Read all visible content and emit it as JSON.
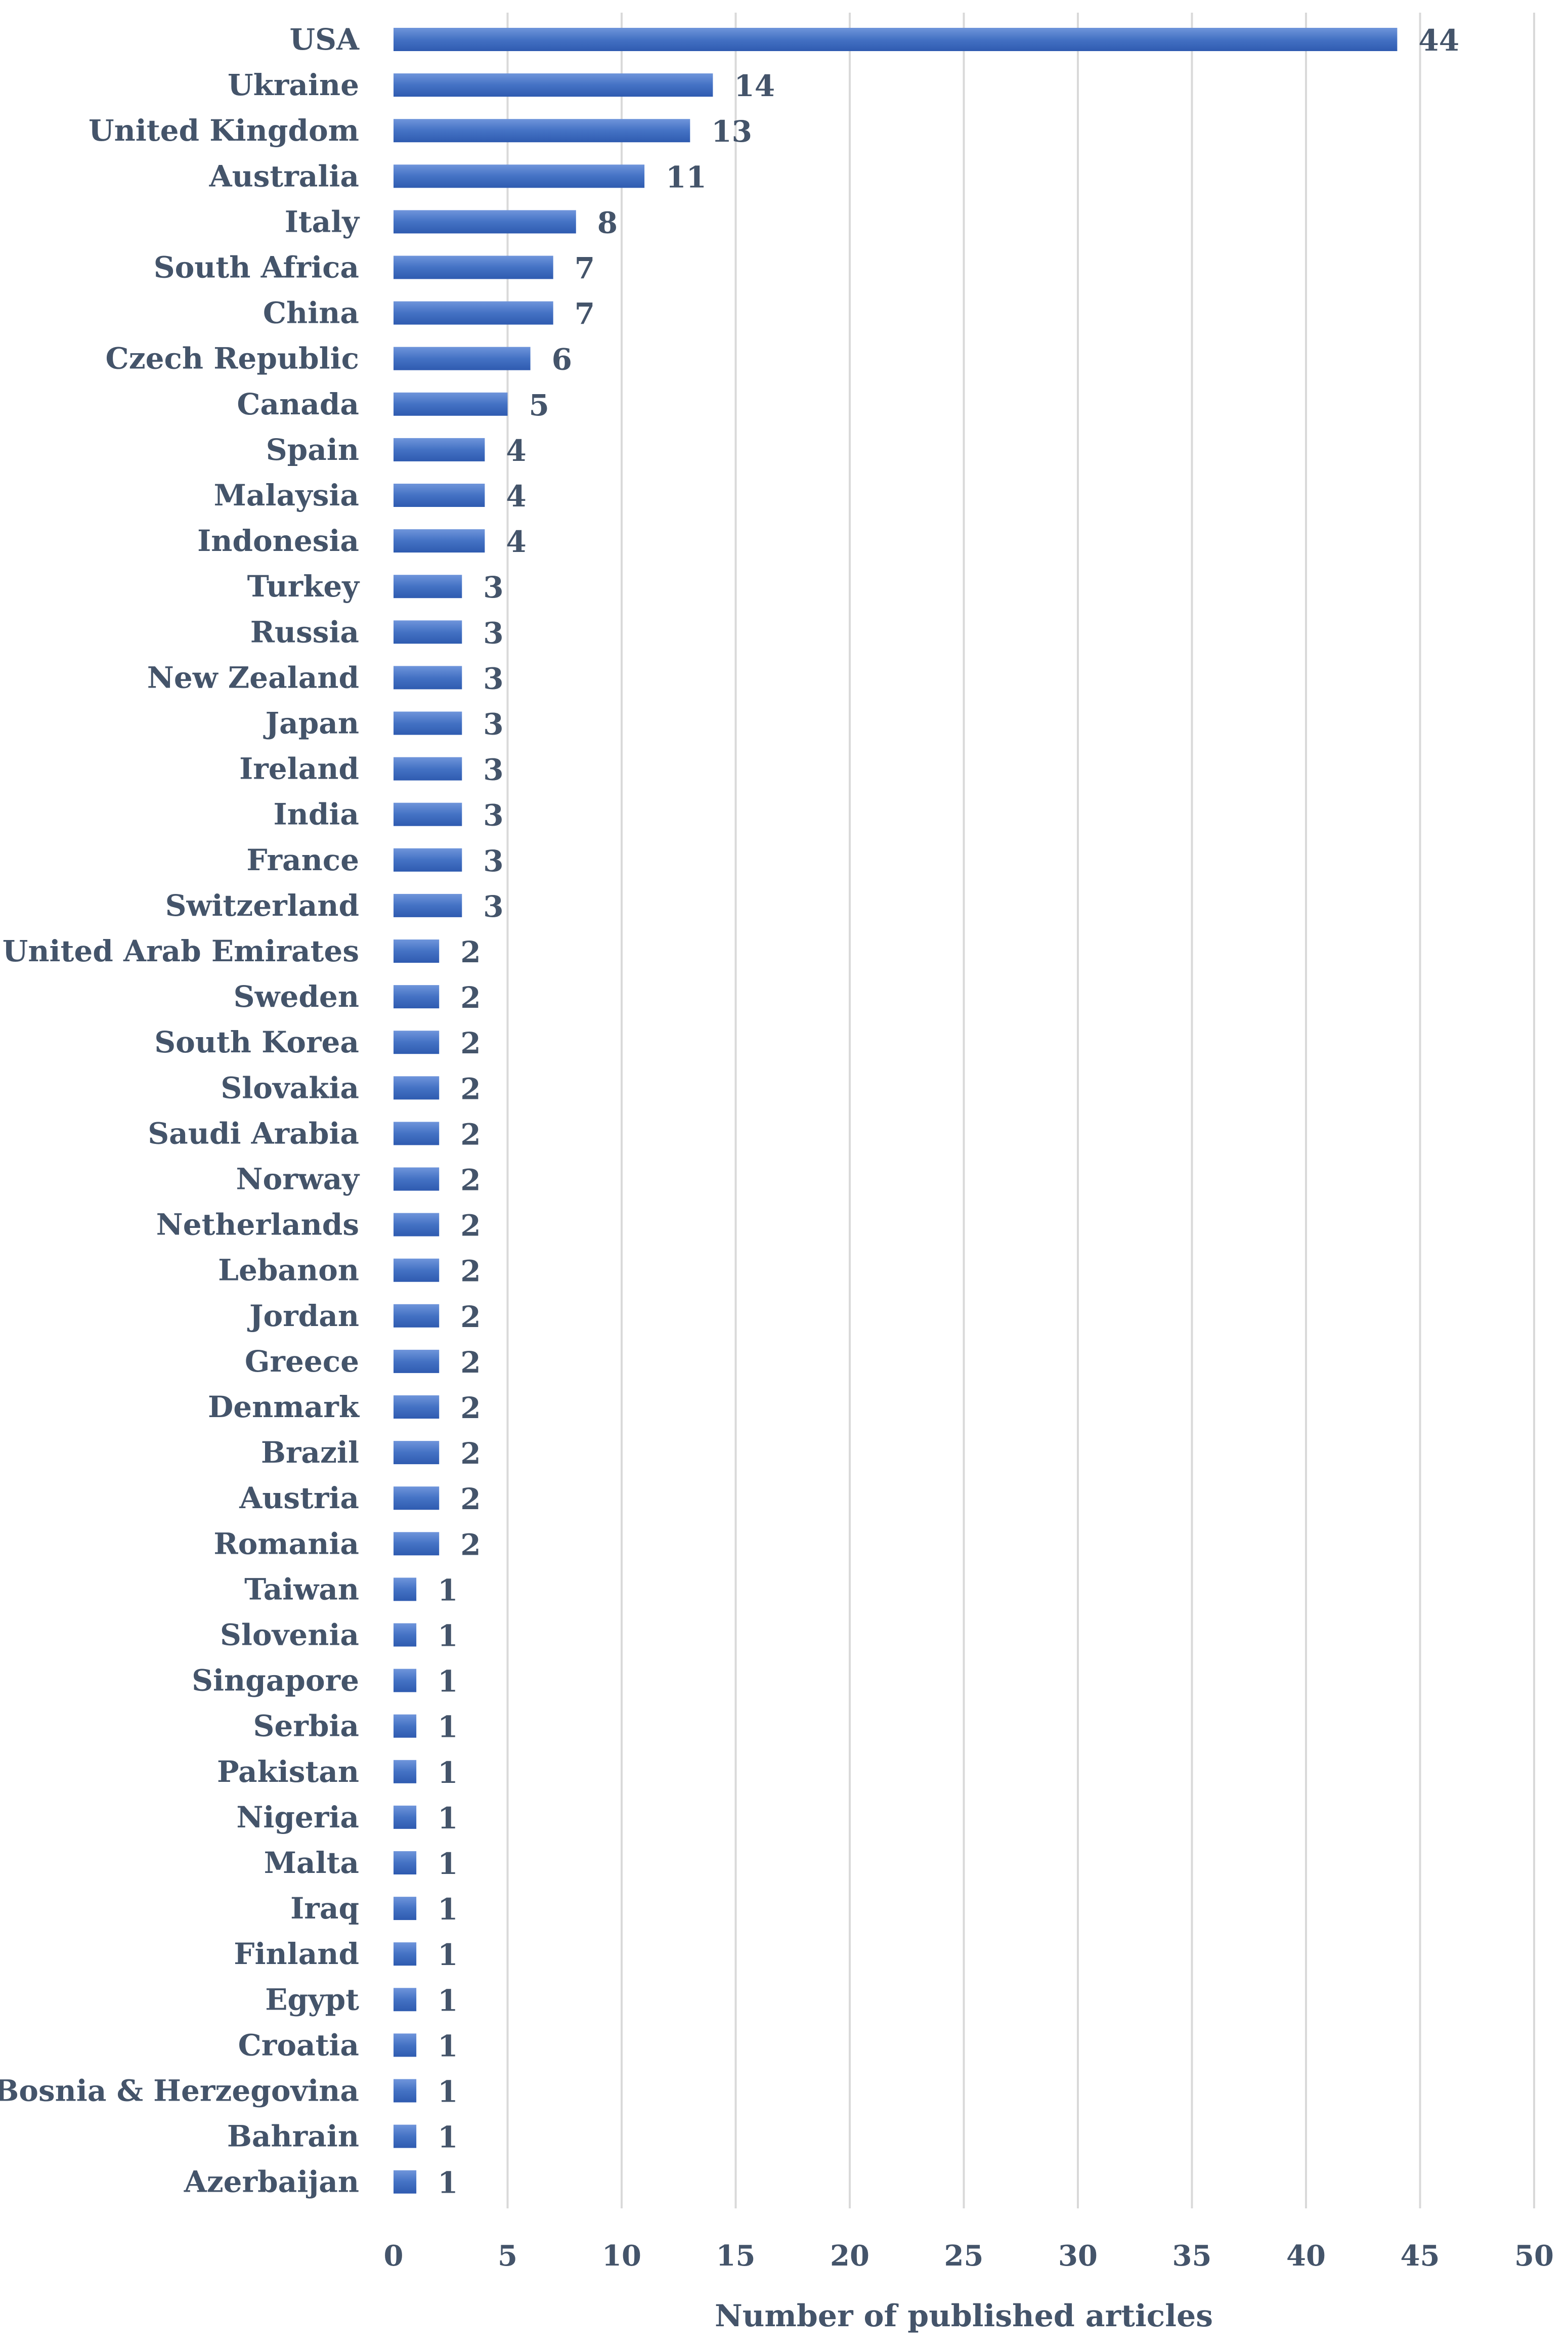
{
  "chart_data": {
    "type": "bar",
    "orientation": "horizontal",
    "title": "",
    "xlabel": "Number of published articles",
    "ylabel": "",
    "xlim": [
      0,
      50
    ],
    "x_ticks": [
      0,
      5,
      10,
      15,
      20,
      25,
      30,
      35,
      40,
      45,
      50
    ],
    "grid": "vertical",
    "bar_color": "#4472c4",
    "data_labels": true,
    "categories": [
      "USA",
      "Ukraine",
      "United Kingdom",
      "Australia",
      "Italy",
      "South Africa",
      "China",
      "Czech Republic",
      "Canada",
      "Spain",
      "Malaysia",
      "Indonesia",
      "Turkey",
      "Russia",
      "New Zealand",
      "Japan",
      "Ireland",
      "India",
      "France",
      "Switzerland",
      "United Arab Emirates",
      "Sweden",
      "South Korea",
      "Slovakia",
      "Saudi Arabia",
      "Norway",
      "Netherlands",
      "Lebanon",
      "Jordan",
      "Greece",
      "Denmark",
      "Brazil",
      "Austria",
      "Romania",
      "Taiwan",
      "Slovenia",
      "Singapore",
      "Serbia",
      "Pakistan",
      "Nigeria",
      "Malta",
      "Iraq",
      "Finland",
      "Egypt",
      "Croatia",
      "Bosnia & Herzegovina",
      "Bahrain",
      "Azerbaijan"
    ],
    "values": [
      44,
      14,
      13,
      11,
      8,
      7,
      7,
      6,
      5,
      4,
      4,
      4,
      3,
      3,
      3,
      3,
      3,
      3,
      3,
      3,
      2,
      2,
      2,
      2,
      2,
      2,
      2,
      2,
      2,
      2,
      2,
      2,
      2,
      2,
      1,
      1,
      1,
      1,
      1,
      1,
      1,
      1,
      1,
      1,
      1,
      1,
      1,
      1
    ]
  }
}
